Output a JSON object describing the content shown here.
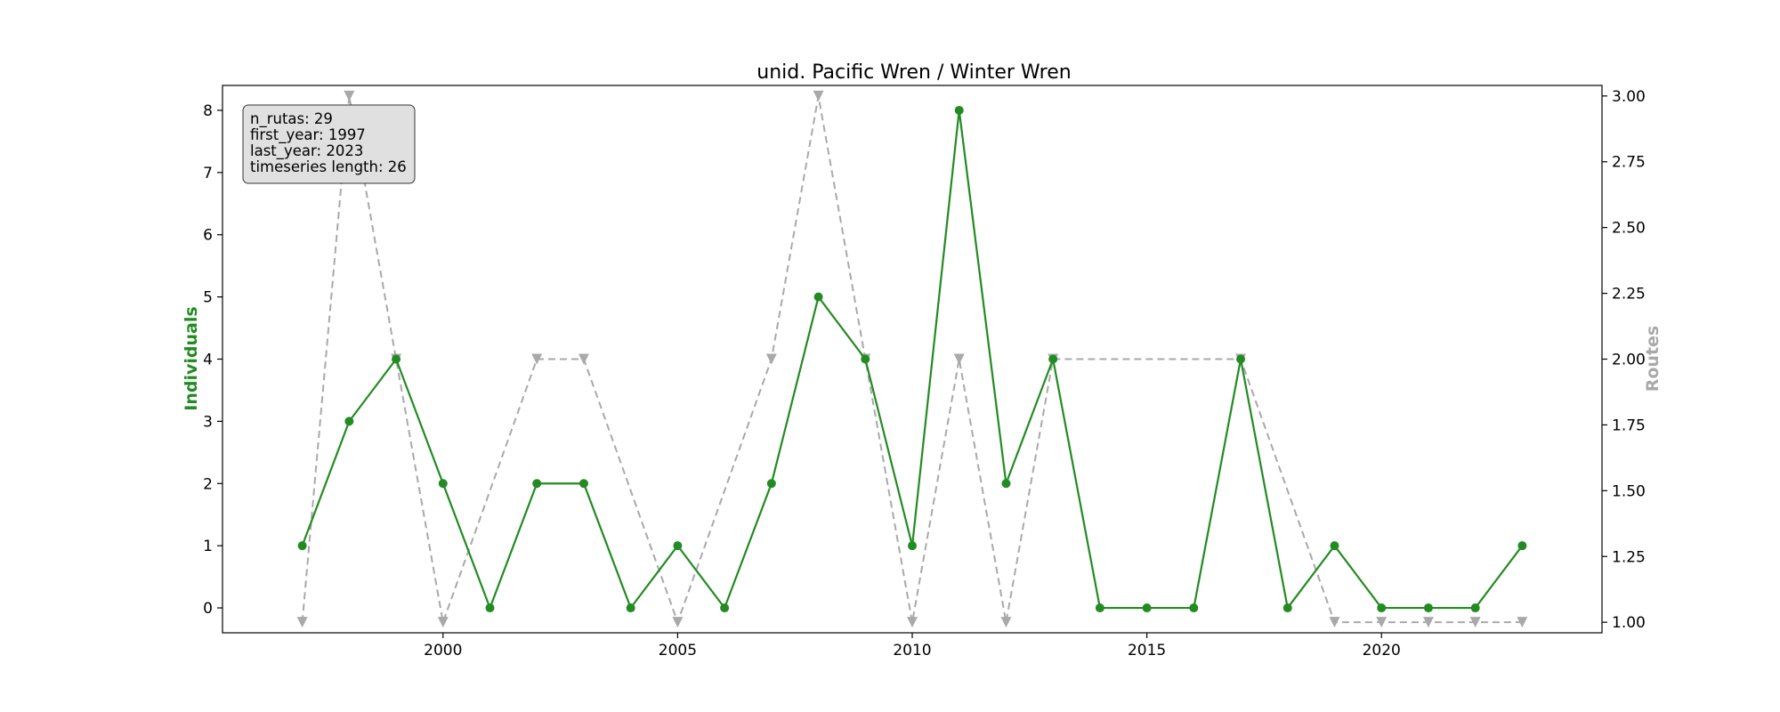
{
  "chart_data": {
    "type": "line",
    "title": "unid. Pacific Wren / Winter Wren",
    "xlabel": "",
    "ylabel": "Individuals",
    "y2label": "Routes",
    "x": [
      1997,
      1998,
      1999,
      2000,
      2001,
      2002,
      2003,
      2004,
      2005,
      2006,
      2007,
      2008,
      2009,
      2010,
      2011,
      2012,
      2013,
      2014,
      2015,
      2016,
      2017,
      2018,
      2019,
      2020,
      2021,
      2022,
      2023
    ],
    "xlim": [
      1995.3,
      2024.7
    ],
    "xticks": [
      2000,
      2005,
      2010,
      2015,
      2020
    ],
    "ylim": [
      -0.4,
      8.4
    ],
    "yticks": [
      0,
      1,
      2,
      3,
      4,
      5,
      6,
      7,
      8
    ],
    "y2lim": [
      0.96,
      3.04
    ],
    "y2ticks": [
      "1.00",
      "1.25",
      "1.50",
      "1.75",
      "2.00",
      "2.25",
      "2.50",
      "2.75",
      "3.00"
    ],
    "grid": false,
    "series": [
      {
        "name": "Individuals",
        "axis": "left",
        "color": "#228b22",
        "style": "solid",
        "marker": "circle",
        "values": [
          1,
          3,
          4,
          2,
          0,
          2,
          2,
          0,
          1,
          0,
          2,
          5,
          4,
          1,
          8,
          2,
          4,
          0,
          0,
          0,
          4,
          0,
          1,
          0,
          0,
          0,
          1
        ]
      },
      {
        "name": "Routes",
        "axis": "right",
        "color": "#a9a9a9",
        "style": "dashed",
        "marker": "triangle-down",
        "x": [
          1997,
          1998,
          1999,
          2000,
          2002,
          2003,
          2005,
          2007,
          2008,
          2009,
          2010,
          2011,
          2012,
          2013,
          2017,
          2019,
          2020,
          2021,
          2022,
          2023
        ],
        "values": [
          1,
          3,
          2,
          1,
          2,
          2,
          1,
          2,
          3,
          2,
          1,
          2,
          1,
          2,
          2,
          1,
          1,
          1,
          1,
          1
        ]
      }
    ],
    "annotation": {
      "lines": [
        "n_rutas: 29",
        "first_year: 1997",
        "last_year: 2023",
        "timeseries length: 26"
      ],
      "placement": "top-left"
    }
  }
}
